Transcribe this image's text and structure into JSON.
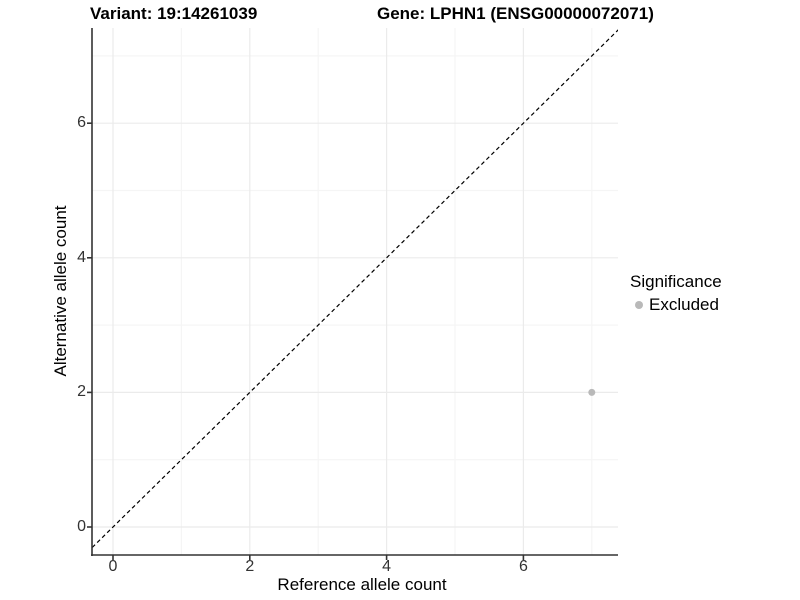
{
  "titles": {
    "variant": "Variant: 19:14261039",
    "gene": "Gene: LPHN1 (ENSG00000072071)"
  },
  "axes": {
    "x_label": "Reference allele count",
    "y_label": "Alternative allele count"
  },
  "legend": {
    "title": "Significance",
    "items": [
      {
        "label": "Excluded",
        "color": "#b9b9b9"
      }
    ]
  },
  "colors": {
    "axis_line": "#333333",
    "tick_mark": "#333333",
    "grid_major": "#ebebeb",
    "grid_minor": "#f5f5f5",
    "identity_line": "#000000",
    "point": "#b9b9b9"
  },
  "chart_data": {
    "type": "scatter",
    "title": "Variant: 19:14261039 | Gene: LPHN1 (ENSG00000072071)",
    "xlabel": "Reference allele count",
    "ylabel": "Alternative allele count",
    "xlim": [
      -0.35,
      7.35
    ],
    "ylim": [
      -0.35,
      7.35
    ],
    "x_ticks": [
      0,
      2,
      4,
      6
    ],
    "y_ticks": [
      0,
      2,
      4,
      6
    ],
    "minor_gridlines_x": [
      1,
      3,
      5,
      7
    ],
    "minor_gridlines_y": [
      1,
      3,
      5,
      7
    ],
    "grid": true,
    "legend_position": "right",
    "reference_line": {
      "type": "identity",
      "slope": 1,
      "intercept": 0,
      "style": "dashed"
    },
    "series": [
      {
        "name": "Excluded",
        "color": "#b9b9b9",
        "points": [
          {
            "x": 7,
            "y": 2
          }
        ]
      }
    ]
  }
}
